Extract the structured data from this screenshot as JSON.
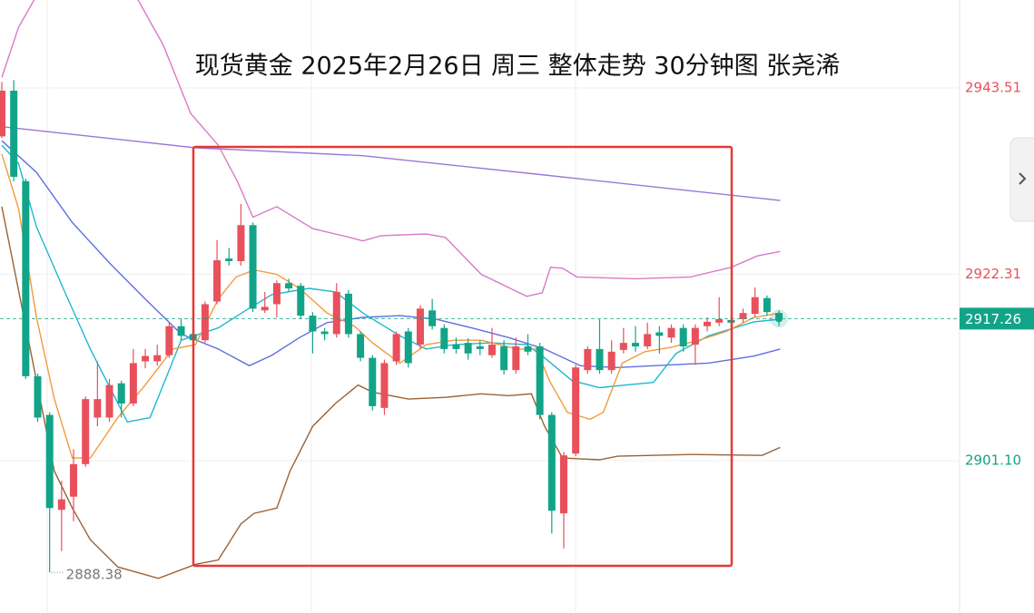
{
  "chart_data": {
    "type": "candlestick",
    "title": "现货黄金  2025年2月26日 周三 整体走势 30分钟图 张尧浠",
    "up_color": "#e8505b",
    "down_color": "#12a488",
    "ylim": [
      2883.76,
      2953.52
    ],
    "yticks": [
      2943.51,
      2922.31,
      {
        "value": 2901.1,
        "label": "2901.10"
      }
    ],
    "grid": true,
    "candles": {
      "open": [
        2938.0,
        2943.2,
        2932.9,
        2910.7,
        2906.3,
        2895.5,
        2897.0,
        2900.7,
        2906.0,
        2906.0,
        2909.9,
        2907.6,
        2912.4,
        2912.4,
        2913.1,
        2916.4,
        2915.5,
        2914.8,
        2919.2,
        2924.1,
        2923.8,
        2927.9,
        2918.2,
        2918.9,
        2921.3,
        2921.0,
        2917.6,
        2915.8,
        2915.5,
        2920.1,
        2915.5,
        2912.8,
        2907.1,
        2912.4,
        2915.8,
        2914.3,
        2918.2,
        2916.2,
        2914.3,
        2914.5,
        2914.1,
        2913.1,
        2914.1,
        2911.4,
        2914.1,
        2914.1,
        2906.3,
        2895.1,
        2901.9,
        2911.4,
        2913.8,
        2911.4,
        2913.7,
        2914.5,
        2914.1,
        2915.7,
        2915.1,
        2916.2,
        2914.3,
        2916.4,
        2916.8,
        2917.1,
        2917.2,
        2917.8,
        2919.6,
        2917.9
      ],
      "high": [
        2944.2,
        2944.4,
        2933.2,
        2911.0,
        2906.6,
        2898.8,
        2902.4,
        2908.4,
        2912.4,
        2910.4,
        2910.2,
        2913.8,
        2913.8,
        2914.3,
        2916.8,
        2917.2,
        2916.0,
        2919.2,
        2926.2,
        2925.3,
        2930.3,
        2928.2,
        2920.3,
        2921.6,
        2921.8,
        2921.3,
        2918.0,
        2916.2,
        2921.3,
        2920.5,
        2915.8,
        2913.1,
        2912.6,
        2915.8,
        2916.2,
        2918.8,
        2919.5,
        2916.6,
        2915.1,
        2915.0,
        2914.8,
        2916.2,
        2914.8,
        2915.1,
        2915.5,
        2914.5,
        2906.6,
        2902.1,
        2912.0,
        2914.1,
        2917.2,
        2914.8,
        2916.2,
        2916.4,
        2916.8,
        2916.4,
        2916.6,
        2916.6,
        2916.6,
        2917.4,
        2919.7,
        2917.6,
        2918.4,
        2920.8,
        2919.9,
        2918.2
      ],
      "low": [
        2937.8,
        2932.9,
        2910.4,
        2905.5,
        2888.38,
        2890.8,
        2894.2,
        2900.4,
        2905.0,
        2905.5,
        2906.0,
        2907.3,
        2911.6,
        2911.9,
        2912.8,
        2914.8,
        2914.3,
        2914.5,
        2918.9,
        2923.3,
        2923.3,
        2918.0,
        2917.9,
        2917.4,
        2920.3,
        2917.2,
        2913.3,
        2914.8,
        2915.1,
        2915.1,
        2912.4,
        2906.8,
        2906.3,
        2912.0,
        2911.7,
        2913.8,
        2916.0,
        2913.3,
        2913.3,
        2912.6,
        2913.1,
        2912.8,
        2910.9,
        2911.0,
        2913.1,
        2905.8,
        2892.8,
        2891.1,
        2901.6,
        2911.0,
        2911.0,
        2911.0,
        2913.3,
        2913.5,
        2913.8,
        2913.3,
        2914.5,
        2913.5,
        2912.0,
        2915.8,
        2916.4,
        2916.4,
        2916.8,
        2917.4,
        2917.6,
        2916.4
      ],
      "close": [
        2943.2,
        2933.4,
        2910.7,
        2906.0,
        2895.7,
        2896.7,
        2900.7,
        2908.1,
        2908.1,
        2909.7,
        2907.6,
        2912.2,
        2913.0,
        2913.1,
        2916.4,
        2915.3,
        2914.8,
        2918.9,
        2923.9,
        2923.8,
        2927.9,
        2918.4,
        2918.6,
        2921.3,
        2920.7,
        2917.6,
        2915.8,
        2915.5,
        2920.3,
        2915.5,
        2912.8,
        2907.3,
        2912.2,
        2915.5,
        2912.2,
        2918.4,
        2916.4,
        2913.8,
        2913.8,
        2913.3,
        2913.8,
        2914.3,
        2911.4,
        2914.1,
        2913.5,
        2906.3,
        2895.4,
        2901.7,
        2911.7,
        2913.8,
        2911.4,
        2913.5,
        2914.5,
        2914.1,
        2915.5,
        2915.3,
        2916.2,
        2914.1,
        2916.2,
        2916.9,
        2917.2,
        2916.8,
        2917.9,
        2919.7,
        2918.0,
        2917.26
      ]
    },
    "lines": [
      {
        "color": "#9a78d8",
        "x": [
          0,
          16.2,
          30.2,
          45.4,
          65.1
        ],
        "values": [
          2939.1,
          2936.7,
          2935.8,
          2933.6,
          2930.7
        ]
      },
      {
        "color": "#d97ac8",
        "x": [
          0,
          1.4,
          2.9,
          11.2,
          13.5,
          15.8,
          18.1,
          19.7,
          21.0,
          23.0,
          26.0,
          29.1,
          30.2,
          31.7,
          35.5,
          37.1,
          40.1,
          43.9,
          45.2,
          45.9,
          46.9,
          48.1,
          53.0,
          57.6,
          61.0,
          63.2,
          65.1
        ],
        "values": [
          2944.7,
          2950.4,
          2954.0,
          2954.0,
          2948.4,
          2940.6,
          2937.0,
          2932.9,
          2928.8,
          2930.0,
          2927.5,
          2926.5,
          2926.1,
          2926.7,
          2926.9,
          2926.5,
          2922.3,
          2919.8,
          2920.2,
          2923.1,
          2923.0,
          2922.0,
          2921.8,
          2922.0,
          2923.1,
          2924.4,
          2924.9
        ]
      },
      {
        "color": "#9b6236",
        "x": [
          0,
          1.4,
          2.9,
          4.4,
          5.9,
          7.4,
          9.7,
          13.1,
          16.2,
          18.1,
          20.0,
          21.1,
          23.0,
          24.1,
          26.0,
          27.9,
          29.8,
          31.0,
          34.0,
          37.1,
          40.1,
          42.4,
          44.3,
          45.4,
          46.9,
          50.0,
          51.5,
          57.6,
          63.6,
          65.1
        ],
        "values": [
          2930.0,
          2920.5,
          2910.2,
          2899.9,
          2895.7,
          2892.1,
          2889.0,
          2887.7,
          2889.3,
          2889.8,
          2893.9,
          2895.1,
          2895.7,
          2899.9,
          2905.0,
          2907.6,
          2909.7,
          2908.9,
          2908.1,
          2908.3,
          2908.7,
          2908.5,
          2908.7,
          2905.0,
          2901.4,
          2901.2,
          2901.6,
          2901.8,
          2901.7,
          2902.6
        ]
      },
      {
        "color": "#5f6fe0",
        "x": [
          0,
          2.9,
          5.9,
          9.0,
          12.0,
          15.0,
          18.1,
          20.7,
          22.6,
          24.9,
          27.2,
          30.2,
          33.3,
          36.3,
          39.3,
          42.4,
          45.4,
          48.4,
          51.5,
          54.5,
          59.1,
          62.9,
          65.1
        ],
        "values": [
          2937.5,
          2933.9,
          2928.2,
          2923.6,
          2919.5,
          2915.5,
          2913.8,
          2911.9,
          2913.1,
          2915.1,
          2916.8,
          2917.4,
          2917.6,
          2917.2,
          2916.2,
          2915.1,
          2913.8,
          2911.9,
          2911.7,
          2911.9,
          2912.2,
          2913.0,
          2913.8
        ]
      },
      {
        "color": "#1fb8cf",
        "x": [
          0,
          1.4,
          2.9,
          5.2,
          7.4,
          10.5,
          12.4,
          15.0,
          18.1,
          20.4,
          22.6,
          25.7,
          27.9,
          30.2,
          33.3,
          35.5,
          37.8,
          40.9,
          43.9,
          45.4,
          47.7,
          50.0,
          52.2,
          54.5,
          56.4,
          59.1,
          62.9,
          65.1
        ],
        "values": [
          2937.0,
          2934.9,
          2927.7,
          2920.5,
          2913.8,
          2905.5,
          2906.0,
          2914.8,
          2916.2,
          2918.2,
          2920.0,
          2920.7,
          2920.3,
          2917.9,
          2915.3,
          2913.8,
          2914.3,
          2914.5,
          2914.3,
          2912.8,
          2910.2,
          2909.4,
          2909.7,
          2910.0,
          2913.3,
          2915.3,
          2916.9,
          2917.2
        ]
      },
      {
        "color": "#f39a3a",
        "x": [
          0,
          1.4,
          2.9,
          4.4,
          5.9,
          7.4,
          9.7,
          12.0,
          14.3,
          16.2,
          18.1,
          19.6,
          21.1,
          23.0,
          24.9,
          27.2,
          29.5,
          31.0,
          33.3,
          35.5,
          37.8,
          40.1,
          43.1,
          44.7,
          45.8,
          47.3,
          49.2,
          50.3,
          51.9,
          53.8,
          56.0,
          58.3,
          60.6,
          62.9,
          65.1
        ],
        "values": [
          2936.0,
          2929.8,
          2917.4,
          2908.1,
          2901.4,
          2901.4,
          2906.0,
          2909.7,
          2913.8,
          2914.3,
          2919.5,
          2922.0,
          2922.8,
          2922.3,
          2920.7,
          2917.9,
          2916.4,
          2914.5,
          2912.2,
          2914.3,
          2914.8,
          2914.8,
          2913.8,
          2913.8,
          2910.2,
          2906.6,
          2905.8,
          2906.6,
          2912.2,
          2913.5,
          2914.0,
          2914.8,
          2915.8,
          2917.4,
          2917.9
        ]
      }
    ]
  }
}
